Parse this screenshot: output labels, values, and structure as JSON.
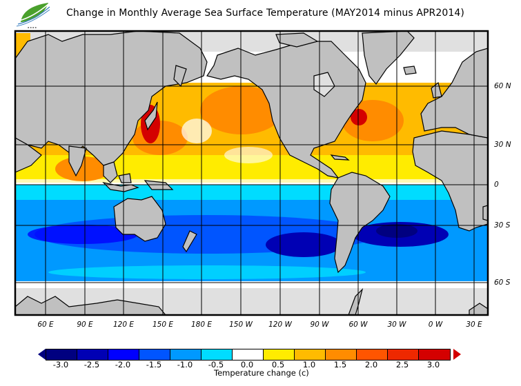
{
  "header": {
    "title": "Change in Monthly Average Sea Surface Temperature (MAY2014 minus APR2014)",
    "logo_icon": "leaf-logo-icon"
  },
  "map": {
    "longitude_labels": [
      "60 E",
      "90 E",
      "120 E",
      "150 E",
      "180 E",
      "150 W",
      "120 W",
      "90 W",
      "60 W",
      "30 W",
      "0 W",
      "30 E"
    ],
    "latitude_labels": [
      "60 N",
      "30 N",
      "0",
      "30 S",
      "60 S"
    ],
    "colors": {
      "land": "#c0c0c0",
      "ice": "#e0e0e0",
      "coast": "#000000",
      "grid": "#000000"
    }
  },
  "colorbar": {
    "title": "Temperature change  (c)",
    "tick_labels": [
      "-3.0",
      "-2.5",
      "-2.0",
      "-1.5",
      "-1.0",
      "-0.5",
      "0.0",
      "0.5",
      "1.0",
      "1.5",
      "2.0",
      "2.5",
      "3.0"
    ],
    "colors": [
      "#000080",
      "#0000b4",
      "#0000ff",
      "#0055ff",
      "#0099ff",
      "#00dcff",
      "#ffffff",
      "#ffec00",
      "#ffbb00",
      "#ff8c00",
      "#ff5500",
      "#ee2800",
      "#d40000"
    ],
    "under_color": "#000080",
    "over_color": "#d40000"
  }
}
